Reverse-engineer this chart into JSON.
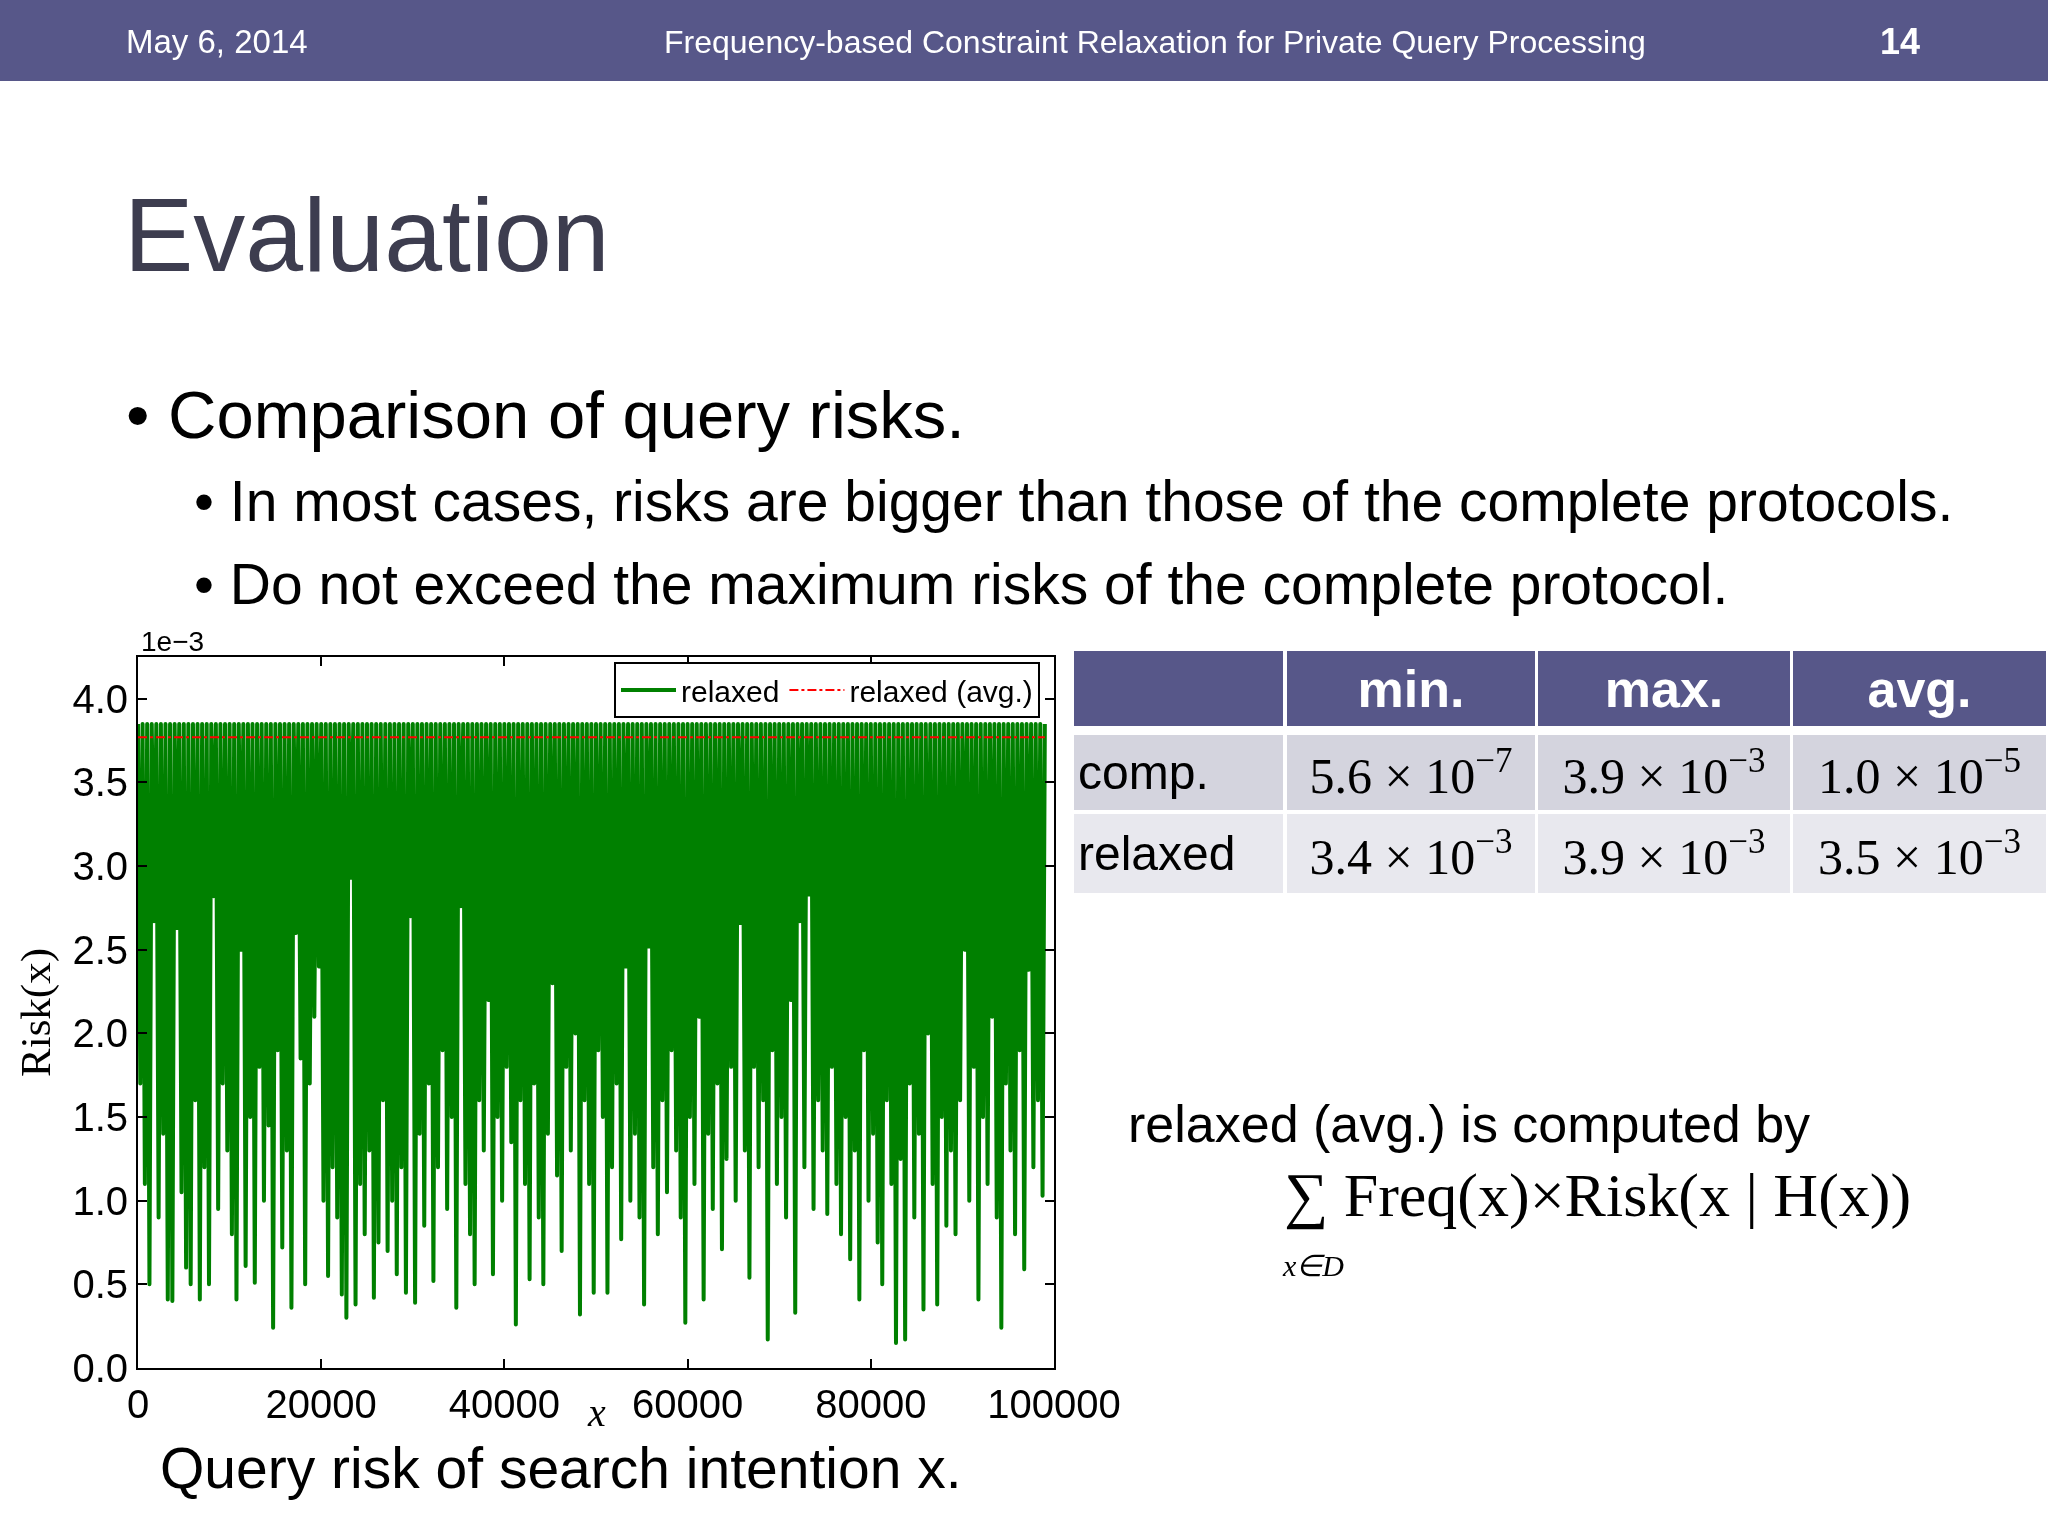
{
  "chart_data": {
    "type": "line",
    "title": "Evaluation",
    "subtitle": "• Comparison of query risks.",
    "xlabel": "x",
    "ylabel": "Risk(x)",
    "annotations": [
      "May 6, 2014",
      "Frequency-based Constraint Relaxation for Private Query Processing",
      "14",
      "• In most cases, risks are bigger than those of the complete protocols.",
      "• Do not exceed the maximum risks of the complete protocol.",
      "1e−3",
      "min.",
      "max.",
      "avg.",
      "comp.",
      "5.6 × 10$^{−7}$",
      "3.9 × 10$^{−3}$",
      "1.0 × 10$^{−5}$",
      "relaxed",
      "3.4 × 10$^{−3}$",
      "3.9 × 10$^{−3}$",
      "3.5 × 10$^{−3}$",
      "relaxed (avg.) is computed by",
      "∑ Freq(x)×Risk(x | H(x))",
      "x∈D",
      "Query risk of search intention x."
    ],
    "x": [
      0,
      250,
      500,
      750,
      1000,
      1250,
      1500,
      1750,
      2000,
      2250,
      2500,
      2750,
      3000,
      3250,
      3500,
      3750,
      4000,
      4250,
      4500,
      4750,
      5000,
      5250,
      5500,
      5750,
      6000,
      6250,
      6500,
      6750,
      7000,
      7250,
      7500,
      7750,
      8000,
      8250,
      8500,
      8750,
      9000,
      9250,
      9500,
      9750,
      10000,
      10250,
      10500,
      10750,
      11000,
      11250,
      11500,
      11750,
      12000,
      12250,
      12500,
      12750,
      13000,
      13250,
      13500,
      13750,
      14000,
      14250,
      14500,
      14750,
      15000,
      15250,
      15500,
      15750,
      16000,
      16250,
      16500,
      16750,
      17000,
      17250,
      17500,
      17750,
      18000,
      18250,
      18500,
      18750,
      19000,
      19250,
      19500,
      19750,
      20000,
      20250,
      20500,
      20750,
      21000,
      21250,
      21500,
      21750,
      22000,
      22250,
      22500,
      22750,
      23000,
      23250,
      23500,
      23750,
      24000,
      24250,
      24500,
      24750,
      25000,
      25250,
      25500,
      25750,
      26000,
      26250,
      26500,
      26750,
      27000,
      27250,
      27500,
      27750,
      28000,
      28250,
      28500,
      28750,
      29000,
      29250,
      29500,
      29750,
      30000,
      30250,
      30500,
      30750,
      31000,
      31250,
      31500,
      31750,
      32000,
      32250,
      32500,
      32750,
      33000,
      33250,
      33500,
      33750,
      34000,
      34250,
      34500,
      34750,
      35000,
      35250,
      35500,
      35750,
      36000,
      36250,
      36500,
      36750,
      37000,
      37250,
      37500,
      37750,
      38000,
      38250,
      38500,
      38750,
      39000,
      39250,
      39500,
      39750,
      40000,
      40250,
      40500,
      40750,
      41000,
      41250,
      41500,
      41750,
      42000,
      42250,
      42500,
      42750,
      43000,
      43250,
      43500,
      43750,
      44000,
      44250,
      44500,
      44750,
      45000,
      45250,
      45500,
      45750,
      46000,
      46250,
      46500,
      46750,
      47000,
      47250,
      47500,
      47750,
      48000,
      48250,
      48500,
      48750,
      49000,
      49250,
      49500,
      49750,
      50000,
      50250,
      50500,
      50750,
      51000,
      51250,
      51500,
      51750,
      52000,
      52250,
      52500,
      52750,
      53000,
      53250,
      53500,
      53750,
      54000,
      54250,
      54500,
      54750,
      55000,
      55250,
      55500,
      55750,
      56000,
      56250,
      56500,
      56750,
      57000,
      57250,
      57500,
      57750,
      58000,
      58250,
      58500,
      58750,
      59000,
      59250,
      59500,
      59750,
      60000,
      60250,
      60500,
      60750,
      61000,
      61250,
      61500,
      61750,
      62000,
      62250,
      62500,
      62750,
      63000,
      63250,
      63500,
      63750,
      64000,
      64250,
      64500,
      64750,
      65000,
      65250,
      65500,
      65750,
      66000,
      66250,
      66500,
      66750,
      67000,
      67250,
      67500,
      67750,
      68000,
      68250,
      68500,
      68750,
      69000,
      69250,
      69500,
      69750,
      70000,
      70250,
      70500,
      70750,
      71000,
      71250,
      71500,
      71750,
      72000,
      72250,
      72500,
      72750,
      73000,
      73250,
      73500,
      73750,
      74000,
      74250,
      74500,
      74750,
      75000,
      75250,
      75500,
      75750,
      76000,
      76250,
      76500,
      76750,
      77000,
      77250,
      77500,
      77750,
      78000,
      78250,
      78500,
      78750,
      79000,
      79250,
      79500,
      79750,
      80000,
      80250,
      80500,
      80750,
      81000,
      81250,
      81500,
      81750,
      82000,
      82250,
      82500,
      82750,
      83000,
      83250,
      83500,
      83750,
      84000,
      84250,
      84500,
      84750,
      85000,
      85250,
      85500,
      85750,
      86000,
      86250,
      86500,
      86750,
      87000,
      87250,
      87500,
      87750,
      88000,
      88250,
      88500,
      88750,
      89000,
      89250,
      89500,
      89750,
      90000,
      90250,
      90500,
      90750,
      91000,
      91250,
      91500,
      91750,
      92000,
      92250,
      92500,
      92750,
      93000,
      93250,
      93500,
      93750,
      94000,
      94250,
      94500,
      94750,
      95000,
      95250,
      95500,
      95750,
      96000,
      96250,
      96500,
      96750,
      97000,
      97250,
      97500,
      97750,
      98000,
      98250,
      98500,
      98750,
      99000
    ],
    "series": [
      {
        "name": "relaxed",
        "color": "#008000",
        "values": [
          3.85,
          1.7,
          3.85,
          1.1,
          3.85,
          0.5,
          3.85,
          2.67,
          3.85,
          0.9,
          3.85,
          1.4,
          3.85,
          0.41,
          3.85,
          0.4,
          3.85,
          2.63,
          3.85,
          1.05,
          3.85,
          0.6,
          3.85,
          0.5,
          3.85,
          1.6,
          3.85,
          0.41,
          3.85,
          1.2,
          3.85,
          0.5,
          3.85,
          2.82,
          3.85,
          0.95,
          3.85,
          1.7,
          3.85,
          1.3,
          3.85,
          0.8,
          3.85,
          0.41,
          3.85,
          2.5,
          3.85,
          0.61,
          3.85,
          1.5,
          3.85,
          0.51,
          3.85,
          1.8,
          3.85,
          1.0,
          3.85,
          1.45,
          3.85,
          0.24,
          3.85,
          1.9,
          3.85,
          0.72,
          3.85,
          1.3,
          3.85,
          0.36,
          3.85,
          2.6,
          3.85,
          1.85,
          3.85,
          0.5,
          3.85,
          1.7,
          3.85,
          2.1,
          3.85,
          2.4,
          3.85,
          1.0,
          3.85,
          0.55,
          3.85,
          1.2,
          3.85,
          0.9,
          3.85,
          0.44,
          3.85,
          0.3,
          3.85,
          2.93,
          3.85,
          0.38,
          3.85,
          1.1,
          3.85,
          0.8,
          3.85,
          1.3,
          3.85,
          0.42,
          3.85,
          0.75,
          3.85,
          1.6,
          3.85,
          0.7,
          3.85,
          1.0,
          3.85,
          0.56,
          3.85,
          1.2,
          3.85,
          0.45,
          3.85,
          2.7,
          3.85,
          0.39,
          3.85,
          1.4,
          3.85,
          0.85,
          3.85,
          1.7,
          3.85,
          0.52,
          3.85,
          1.2,
          3.85,
          1.9,
          3.85,
          0.95,
          3.85,
          1.5,
          3.85,
          0.36,
          3.85,
          2.76,
          3.85,
          1.1,
          3.85,
          0.8,
          3.85,
          0.5,
          3.85,
          1.6,
          3.85,
          1.3,
          3.85,
          2.2,
          3.85,
          0.56,
          3.85,
          1.5,
          3.85,
          1.0,
          3.85,
          1.8,
          3.85,
          1.35,
          3.85,
          0.26,
          3.85,
          1.6,
          3.85,
          1.1,
          3.85,
          0.53,
          3.85,
          1.7,
          3.85,
          0.9,
          3.85,
          0.5,
          3.85,
          1.4,
          3.85,
          2.3,
          3.85,
          1.15,
          3.85,
          0.7,
          3.85,
          1.8,
          3.85,
          1.3,
          3.85,
          2.0,
          3.85,
          0.32,
          3.85,
          1.6,
          3.85,
          1.1,
          3.85,
          0.45,
          3.85,
          1.9,
          3.85,
          1.5,
          3.85,
          0.45,
          3.85,
          1.2,
          3.85,
          1.7,
          3.85,
          0.77,
          3.85,
          2.4,
          3.85,
          1.0,
          3.85,
          1.4,
          3.85,
          0.9,
          3.85,
          0.38,
          3.85,
          2.52,
          3.85,
          1.2,
          3.85,
          0.8,
          3.85,
          1.6,
          3.85,
          1.05,
          3.85,
          1.9,
          3.85,
          1.3,
          3.85,
          0.9,
          3.85,
          0.27,
          3.85,
          1.5,
          3.85,
          1.1,
          3.85,
          2.1,
          3.85,
          0.41,
          3.85,
          1.4,
          3.85,
          0.95,
          3.85,
          1.7,
          3.85,
          0.71,
          3.85,
          1.25,
          3.85,
          1.8,
          3.85,
          1.0,
          3.85,
          2.66,
          3.85,
          1.3,
          3.85,
          0.54,
          3.85,
          1.8,
          3.85,
          1.2,
          3.85,
          1.6,
          3.85,
          0.17,
          3.85,
          1.9,
          3.85,
          1.1,
          3.85,
          1.5,
          3.85,
          0.9,
          3.85,
          2.2,
          3.85,
          0.33,
          3.85,
          2.67,
          3.85,
          1.2,
          3.85,
          2.83,
          3.85,
          0.95,
          3.85,
          1.6,
          3.85,
          1.3,
          3.85,
          0.92,
          3.85,
          1.8,
          3.85,
          1.1,
          3.85,
          0.8,
          3.85,
          1.5,
          3.85,
          0.65,
          3.85,
          1.3,
          3.85,
          0.41,
          3.85,
          1.9,
          3.85,
          1.0,
          3.85,
          1.4,
          3.85,
          0.75,
          3.85,
          0.5,
          3.85,
          1.6,
          3.85,
          1.1,
          3.85,
          0.15,
          3.85,
          1.25,
          3.85,
          0.17,
          3.85,
          1.7,
          3.85,
          0.9,
          3.85,
          1.4,
          3.85,
          0.35,
          3.85,
          2.0,
          3.85,
          1.1,
          3.85,
          0.38,
          3.85,
          1.5,
          3.85,
          0.85,
          3.85,
          1.3,
          3.85,
          0.8,
          3.85,
          1.6,
          3.85,
          2.5,
          3.85,
          1.0,
          3.85,
          1.8,
          3.85,
          0.41,
          3.85,
          1.5,
          3.85,
          1.1,
          3.85,
          2.1,
          3.85,
          0.9,
          3.85,
          0.24,
          3.85,
          1.7,
          3.85,
          1.3,
          3.85,
          0.8,
          3.85,
          1.9,
          3.85,
          0.59,
          3.85,
          2.38,
          3.85,
          1.2,
          3.85,
          1.6,
          3.85,
          1.03,
          3.85
        ]
      }
    ],
    "ref_lines": [
      {
        "axis": "y",
        "value": 3.77,
        "label": "relaxed (avg.)",
        "color": "#ff0000",
        "line_style": "dashed"
      }
    ],
    "xlim": [
      0,
      100000
    ],
    "xticks": [
      0,
      20000,
      40000,
      60000,
      80000,
      100000
    ],
    "ylim": [
      0,
      4.25
    ],
    "yticks": [
      {
        "value": 0,
        "label": "0.0"
      },
      0.5,
      {
        "value": 1,
        "label": "1.0"
      },
      1.5,
      {
        "value": 2,
        "label": "2.0"
      },
      2.5,
      {
        "value": 3,
        "label": "3.0"
      },
      3.5,
      {
        "value": 4,
        "label": "4.0"
      }
    ],
    "legend": "top right"
  }
}
